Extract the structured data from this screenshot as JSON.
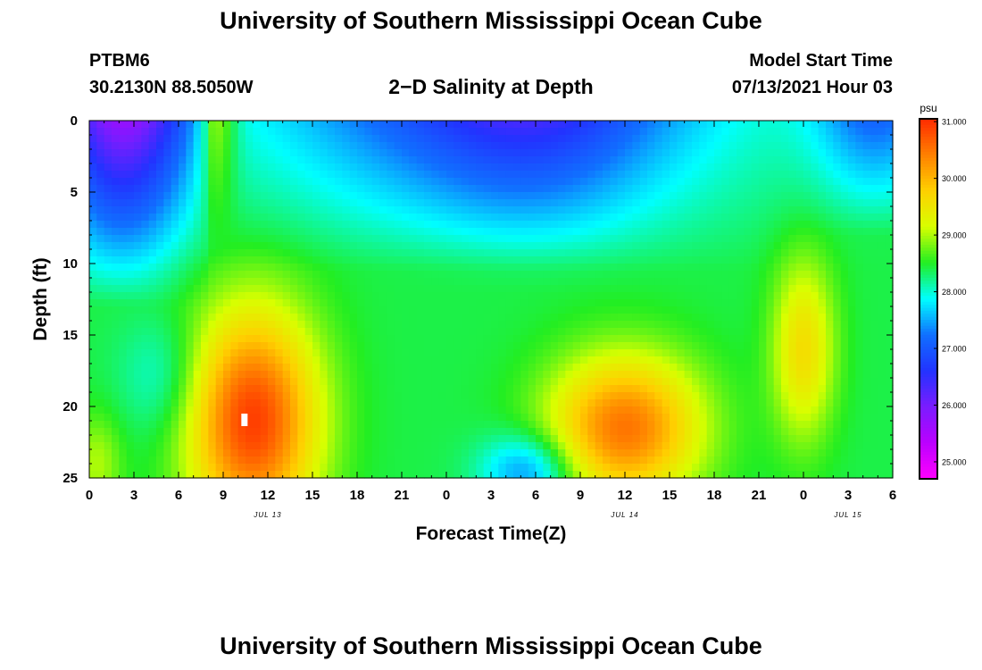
{
  "header": {
    "title": "University of Southern Mississippi Ocean Cube",
    "station": "PTBM6",
    "coords": "30.2130N  88.5050W",
    "subtitle": "2−D Salinity at Depth",
    "start_label": "Model Start Time",
    "start_value": "07/13/2021 Hour 03"
  },
  "footer": {
    "title": "University of Southern Mississippi Ocean Cube"
  },
  "chart_data": {
    "type": "heatmap",
    "title": "2−D Salinity at Depth",
    "xlabel": "Forecast Time(Z)",
    "ylabel": "Depth (ft)",
    "x_tick_labels": [
      "0",
      "3",
      "6",
      "9",
      "12",
      "15",
      "18",
      "21",
      "0",
      "3",
      "6",
      "9",
      "12",
      "15",
      "18",
      "21",
      "0",
      "3",
      "6"
    ],
    "x_range_hours": [
      0,
      54
    ],
    "date_labels": [
      {
        "label": "JUL 13",
        "hour": 12
      },
      {
        "label": "JUL 14",
        "hour": 36
      },
      {
        "label": "JUL 15",
        "hour": 51
      }
    ],
    "y_ticks": [
      0,
      5,
      10,
      15,
      20,
      25
    ],
    "y_range_ft": [
      0,
      25
    ],
    "y_reversed": true,
    "colorbar": {
      "unit": "psu",
      "ticks": [
        "25.000",
        "26.000",
        "27.000",
        "28.000",
        "29.000",
        "30.000",
        "31.000"
      ],
      "range": [
        24.7,
        31.05
      ],
      "colors": [
        "#ff00ff",
        "#bb00ff",
        "#7a1cff",
        "#2233ff",
        "#1070ff",
        "#00ffff",
        "#22ee22",
        "#d8ff00",
        "#ffd000",
        "#ff8000",
        "#ff2a00"
      ]
    },
    "salinity_features": [
      {
        "region": "upper-left corner, hours 0-6, depth 0-13 ft",
        "psu": 26.0
      },
      {
        "region": "upper band, hours 10-40, depth 0-8 ft",
        "psu": 27.5
      },
      {
        "region": "core under hour 10-11, depth 18-23 ft",
        "psu": 30.8
      },
      {
        "region": "core under hour 12 of JUL 14, depth 16-25 ft",
        "psu": 30.4
      },
      {
        "region": "column near hour 48, depth 12-20 ft",
        "psu": 29.6
      },
      {
        "region": "bottom near hours 27-30, depth 23-25 ft",
        "psu": 27.3
      },
      {
        "region": "upper-right, hours 49-54, depth 0-5 ft",
        "psu": 26.9
      },
      {
        "region": "background mid depths",
        "psu": 28.5
      }
    ]
  }
}
